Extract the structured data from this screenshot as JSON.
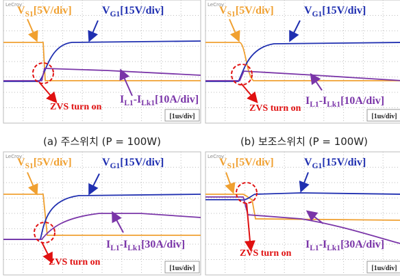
{
  "panels": [
    {
      "logo": "LeCroy",
      "vs": {
        "main": "V",
        "sub": "S1",
        "unit": "[5V/div]"
      },
      "vg": {
        "main": "V",
        "sub": "G1",
        "unit": "[15V/div]"
      },
      "current": {
        "main": "I",
        "sub1": "L1",
        "mid": "-I",
        "sub2": "Lk1",
        "unit": "[10A/div]"
      },
      "annotation": "ZVS turn on",
      "timebase": "[1us/div]",
      "caption": "(a) 주스위치 (P = 100W)"
    },
    {
      "logo": "LeCroy",
      "vs": {
        "main": "V",
        "sub": "S1",
        "unit": "[5V/div]"
      },
      "vg": {
        "main": "V",
        "sub": "G1",
        "unit": "[15V/div]"
      },
      "current": {
        "main": "I",
        "sub1": "L1",
        "mid": "-I",
        "sub2": "Lk1",
        "unit": "[10A/div]"
      },
      "annotation": "ZVS turn on",
      "timebase": "[1us/div]",
      "caption": "(b) 보조스위치 (P = 100W)"
    },
    {
      "logo": "LeCroy",
      "vs": {
        "main": "V",
        "sub": "S1",
        "unit": "[5V/div]"
      },
      "vg": {
        "main": "V",
        "sub": "G1",
        "unit": "[15V/div]"
      },
      "current": {
        "main": "I",
        "sub1": "L1",
        "mid": "-I",
        "sub2": "Lk1",
        "unit": "[30A/div]"
      },
      "annotation": "ZVS turn on",
      "timebase": "[1us/div]"
    },
    {
      "logo": "LeCroy",
      "vs": {
        "main": "V",
        "sub": "S1",
        "unit": "[5V/div]"
      },
      "vg": {
        "main": "V",
        "sub": "G1",
        "unit": "[15V/div]"
      },
      "current": {
        "main": "I",
        "sub1": "L1",
        "mid": "-I",
        "sub2": "Lk1",
        "unit": "[30A/div]"
      },
      "annotation": "ZVS turn on",
      "timebase": "[1us/div]"
    }
  ]
}
